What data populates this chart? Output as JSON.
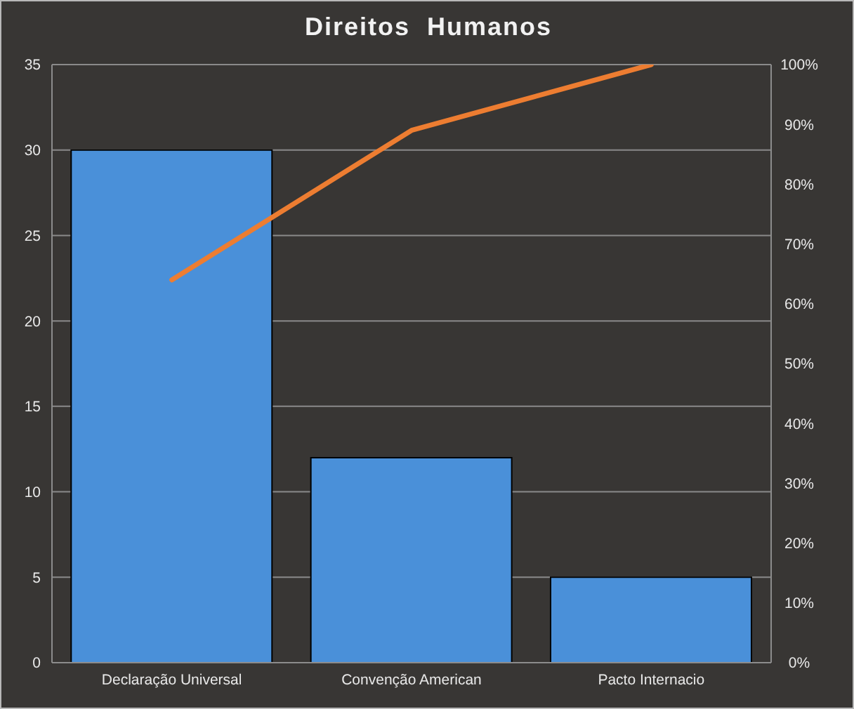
{
  "chart_data": {
    "type": "bar",
    "title": "Direitos  Humanos",
    "categories": [
      "Declaração Universal",
      "Convenção American",
      "Pacto Internacio"
    ],
    "series": [
      {
        "color": "#4a90d9",
        "values": [
          30,
          12,
          5
        ]
      },
      {
        "type": "line",
        "color": "#ed7d31",
        "axis": "y2",
        "values": [
          64,
          89,
          100
        ]
      }
    ],
    "ylim": [
      0,
      35
    ],
    "yticks": [
      0,
      5,
      10,
      15,
      20,
      25,
      30,
      35
    ],
    "y2lim": [
      0,
      100
    ],
    "y2ticks": [
      {
        "value": 0,
        "label": "0%"
      },
      {
        "value": 10,
        "label": "10%"
      },
      {
        "value": 20,
        "label": "20%"
      },
      {
        "value": 30,
        "label": "30%"
      },
      {
        "value": 40,
        "label": "40%"
      },
      {
        "value": 50,
        "label": "50%"
      },
      {
        "value": 60,
        "label": "60%"
      },
      {
        "value": 70,
        "label": "70%"
      },
      {
        "value": 80,
        "label": "80%"
      },
      {
        "value": 90,
        "label": "90%"
      },
      {
        "value": 100,
        "label": "100%"
      }
    ],
    "grid": "y",
    "legend": false,
    "marker": "none"
  }
}
